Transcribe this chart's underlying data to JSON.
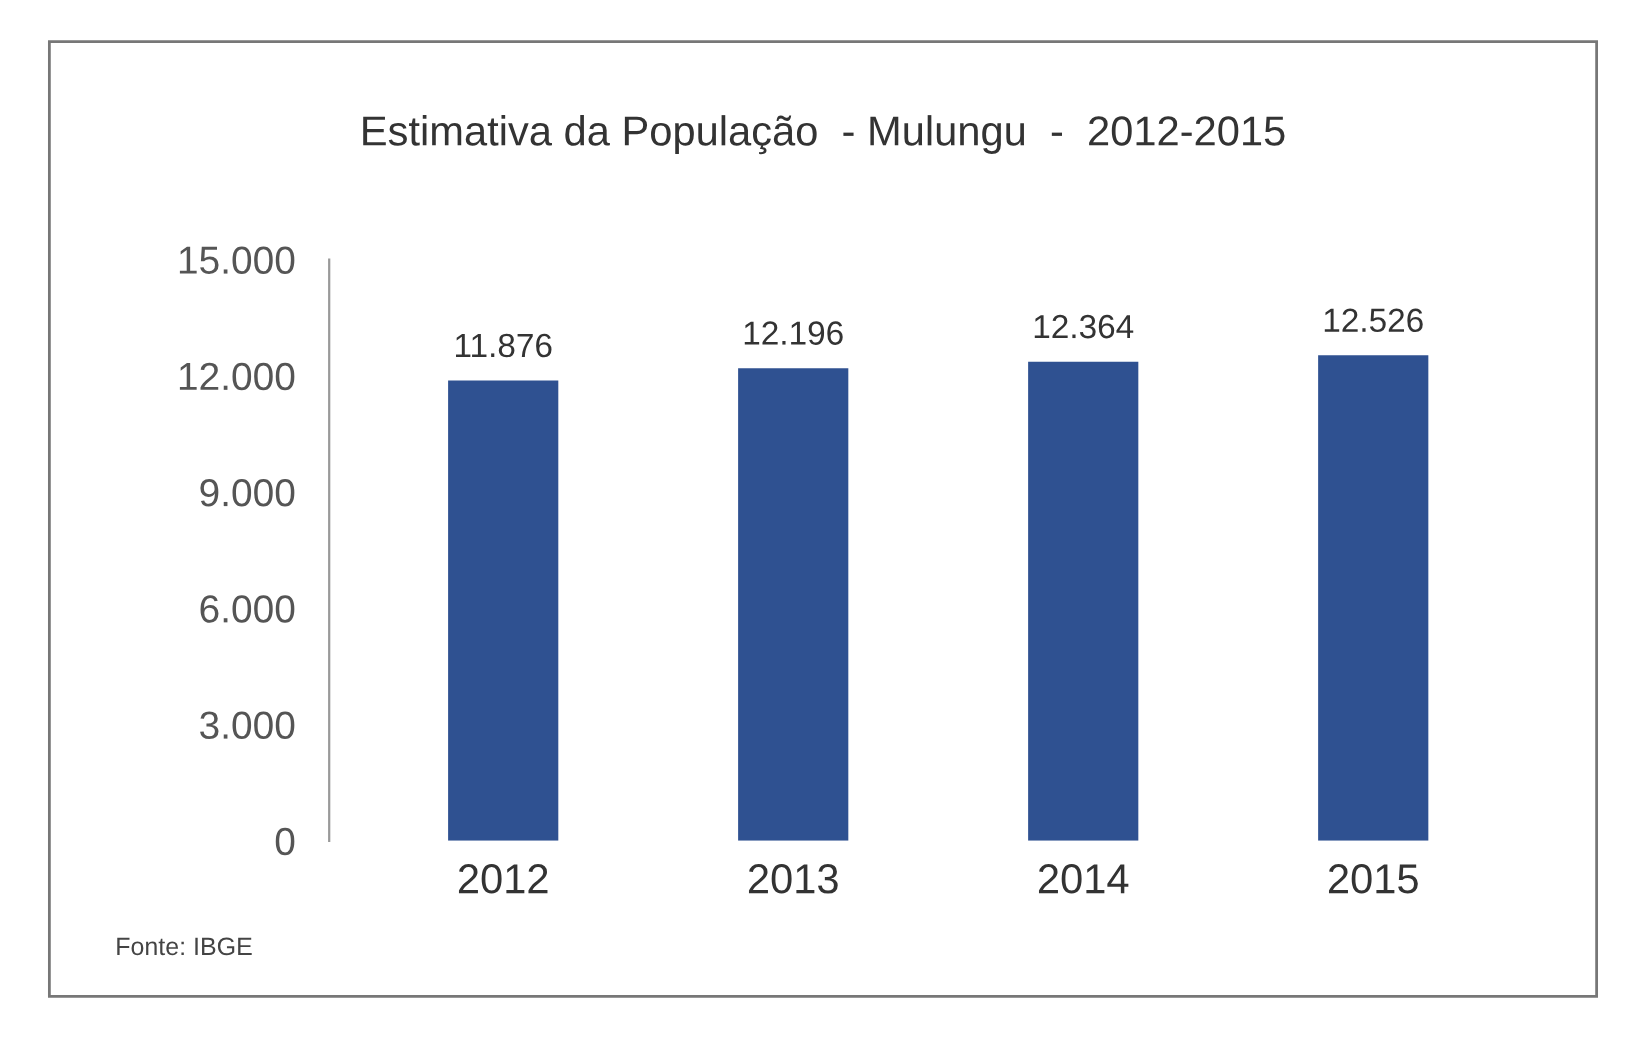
{
  "chart_data": {
    "type": "bar",
    "title": "Estimativa da População  - Mulungu  -  2012-2015",
    "categories": [
      "2012",
      "2013",
      "2014",
      "2015"
    ],
    "values": [
      11876,
      12196,
      12364,
      12526
    ],
    "value_labels": [
      "11.876",
      "12.196",
      "12.364",
      "12.526"
    ],
    "color": "#2f5191",
    "ylim": [
      0,
      15000
    ],
    "yticks": [
      {
        "value": 0,
        "label": "0"
      },
      {
        "value": 3000,
        "label": "3.000"
      },
      {
        "value": 6000,
        "label": "6.000"
      },
      {
        "value": 9000,
        "label": "9.000"
      },
      {
        "value": 12000,
        "label": "12.000"
      },
      {
        "value": 15000,
        "label": "15.000"
      }
    ],
    "grid": false,
    "annotations": [
      "Fonte: IBGE"
    ]
  }
}
